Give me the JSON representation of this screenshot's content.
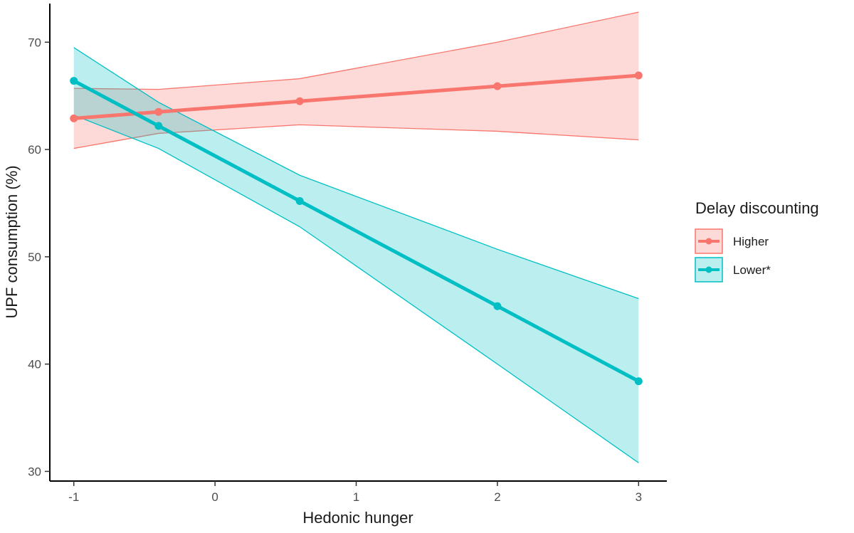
{
  "chart_data": {
    "type": "line",
    "xlabel": "Hedonic hunger",
    "ylabel": "UPF consumption (%)",
    "xlim": [
      -1.17,
      3.2
    ],
    "ylim": [
      29.1,
      73.6
    ],
    "xticks": [
      -1,
      0,
      1,
      2,
      3
    ],
    "xtick_labels": [
      "-1",
      "0",
      "1",
      "2",
      "3"
    ],
    "yticks": [
      30,
      40,
      50,
      60,
      70
    ],
    "ytick_labels": [
      "30",
      "40",
      "50",
      "60",
      "70"
    ],
    "grid": false,
    "legend": {
      "title": "Delay discounting",
      "placement": "right"
    },
    "series": [
      {
        "name": "Higher",
        "color": "#F8766D",
        "band_color": "#F8766D",
        "x": [
          -1,
          -0.4,
          0.6,
          2,
          3
        ],
        "y": [
          62.9,
          63.5,
          64.5,
          65.9,
          66.9
        ],
        "lower": [
          60.1,
          61.5,
          62.3,
          61.7,
          60.9
        ],
        "upper": [
          65.7,
          65.6,
          66.6,
          70.0,
          72.8
        ]
      },
      {
        "name": "Lower*",
        "color": "#00BFC4",
        "band_color": "#00BFC4",
        "x": [
          -1,
          -0.4,
          0.6,
          2,
          3
        ],
        "y": [
          66.4,
          62.2,
          55.2,
          45.4,
          38.4
        ],
        "lower": [
          63.2,
          60.1,
          52.8,
          40.0,
          30.8
        ],
        "upper": [
          69.5,
          64.4,
          57.6,
          50.7,
          46.1
        ]
      }
    ]
  }
}
